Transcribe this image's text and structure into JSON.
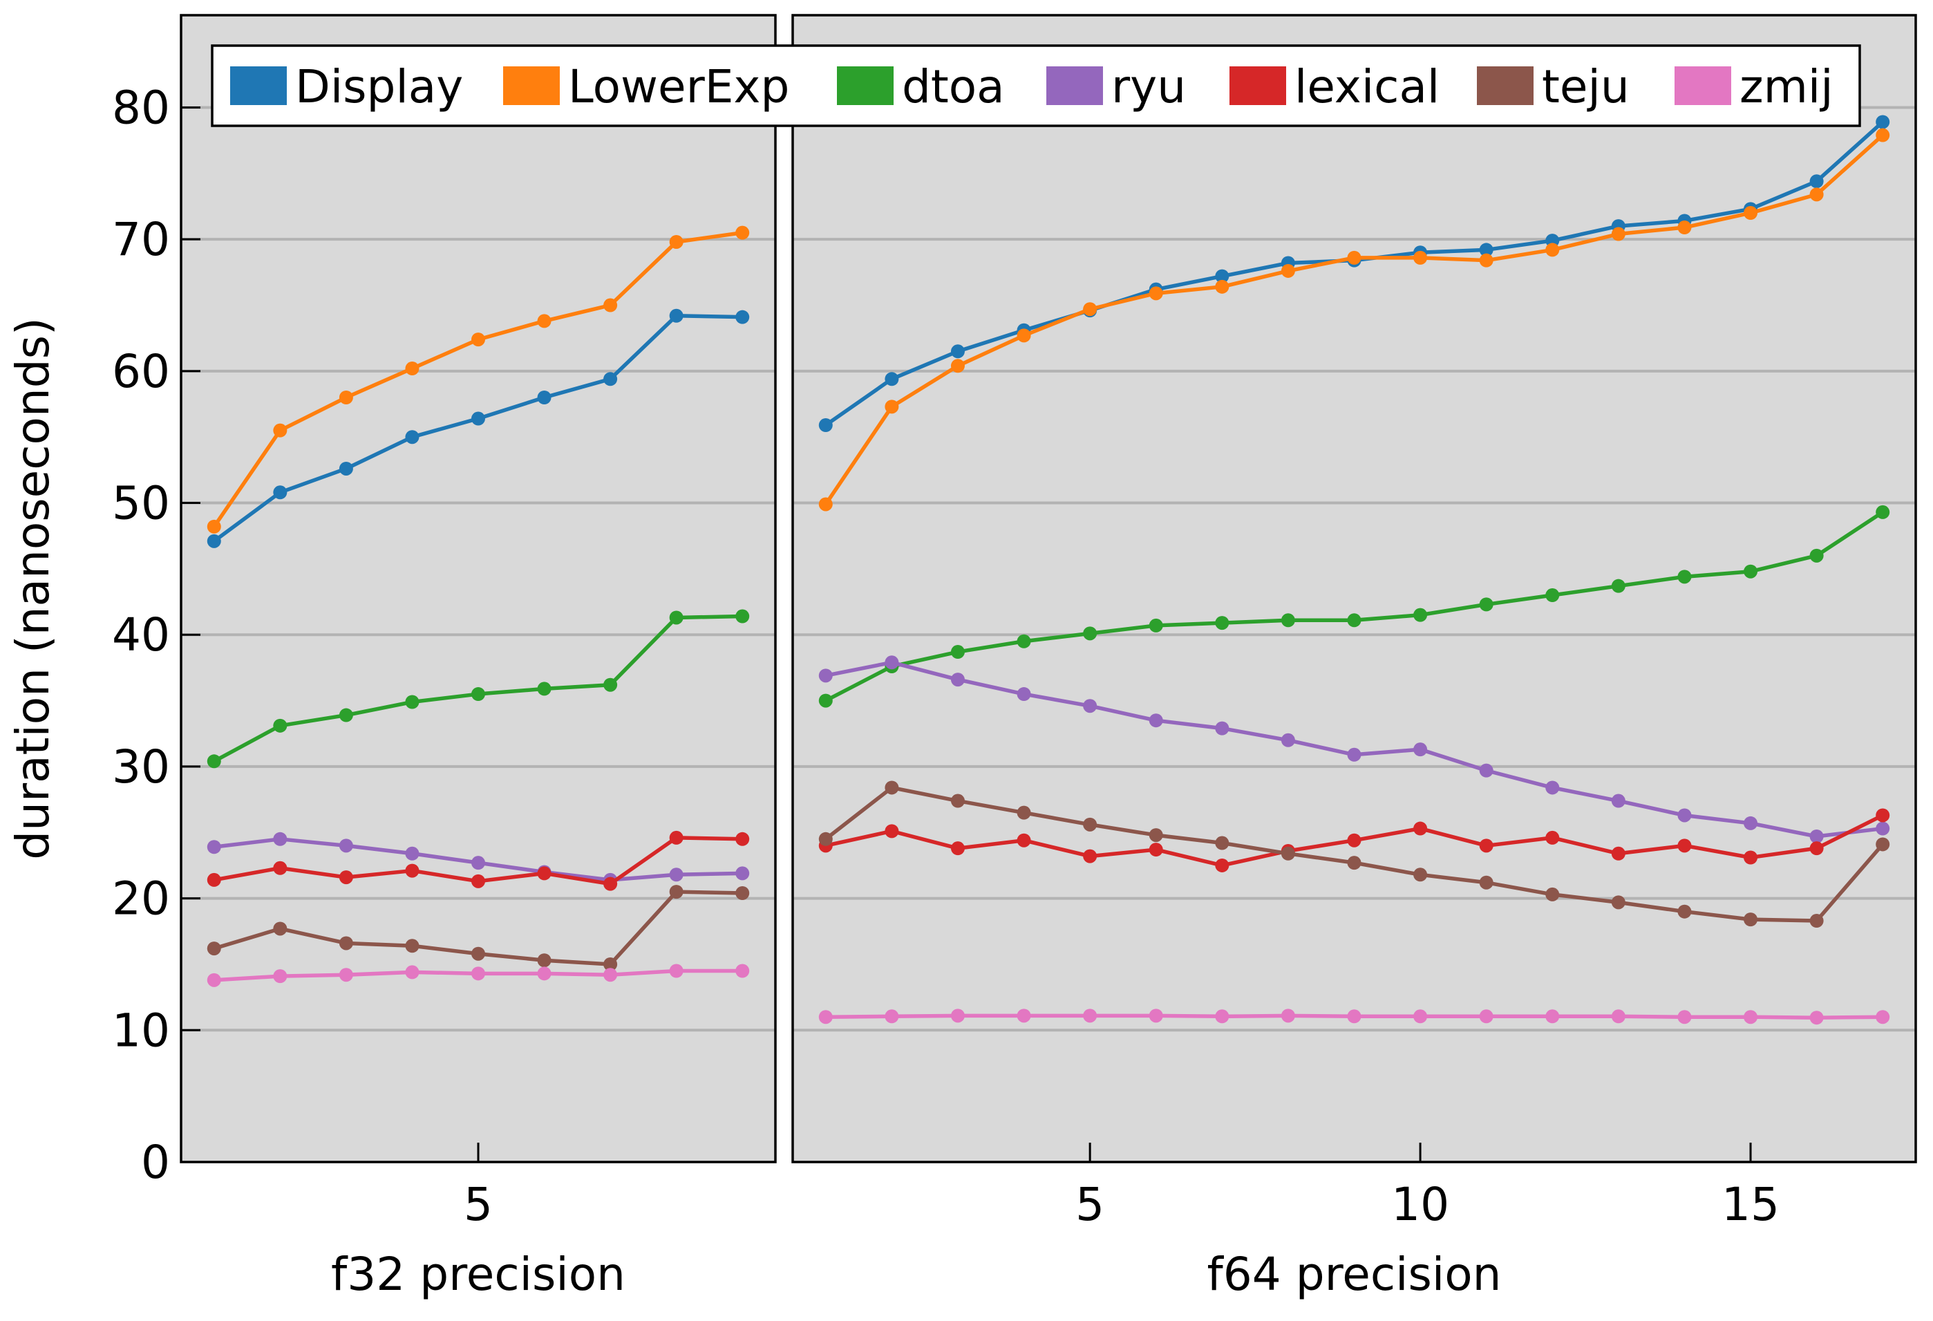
{
  "colors": {
    "Display": "#1f77b4",
    "LowerExp": "#ff7f0e",
    "dtoa": "#2ca02c",
    "ryu": "#9467bd",
    "lexical": "#d62728",
    "teju": "#8c564b",
    "zmij": "#e377c2",
    "panel_bg": "#d9d9d9",
    "grid": "#b3b3b3"
  },
  "legend": {
    "placement": "top",
    "entries": [
      "Display",
      "LowerExp",
      "dtoa",
      "ryu",
      "lexical",
      "teju",
      "zmij"
    ]
  },
  "chart_data": [
    {
      "type": "line",
      "xlabel": "f32 precision",
      "ylabel": "duration  (nanoseconds)",
      "ylim": [
        0,
        87
      ],
      "xlim": [
        0.5,
        9.5
      ],
      "yticks": [
        0,
        10,
        20,
        30,
        40,
        50,
        60,
        70,
        80
      ],
      "xticks": [
        5
      ],
      "grid": "y",
      "x": [
        1,
        2,
        3,
        4,
        5,
        6,
        7,
        8,
        9
      ],
      "series": [
        {
          "name": "Display",
          "values": [
            47.1,
            50.8,
            52.6,
            55.0,
            56.4,
            58.0,
            59.4,
            64.2,
            64.1
          ]
        },
        {
          "name": "LowerExp",
          "values": [
            48.2,
            55.5,
            58.0,
            60.2,
            62.4,
            63.8,
            65.0,
            69.8,
            70.5
          ]
        },
        {
          "name": "dtoa",
          "values": [
            30.4,
            33.1,
            33.9,
            34.9,
            35.5,
            35.9,
            36.2,
            41.3,
            41.4
          ]
        },
        {
          "name": "ryu",
          "values": [
            23.9,
            24.5,
            24.0,
            23.4,
            22.7,
            22.0,
            21.4,
            21.8,
            21.9
          ]
        },
        {
          "name": "lexical",
          "values": [
            21.4,
            22.3,
            21.6,
            22.1,
            21.3,
            21.9,
            21.1,
            24.6,
            24.5
          ]
        },
        {
          "name": "teju",
          "values": [
            16.2,
            17.7,
            16.6,
            16.4,
            15.8,
            15.3,
            15.0,
            20.5,
            20.4
          ]
        },
        {
          "name": "zmij",
          "values": [
            13.8,
            14.1,
            14.2,
            14.4,
            14.3,
            14.3,
            14.2,
            14.5,
            14.5
          ]
        }
      ]
    },
    {
      "type": "line",
      "xlabel": "f64 precision",
      "ylabel": "",
      "ylim": [
        0,
        87
      ],
      "xlim": [
        0.5,
        17.5
      ],
      "yticks": [
        0,
        10,
        20,
        30,
        40,
        50,
        60,
        70,
        80
      ],
      "xticks": [
        5,
        10,
        15
      ],
      "grid": "y",
      "x": [
        1,
        2,
        3,
        4,
        5,
        6,
        7,
        8,
        9,
        10,
        11,
        12,
        13,
        14,
        15,
        16,
        17
      ],
      "series": [
        {
          "name": "Display",
          "values": [
            55.9,
            59.4,
            61.5,
            63.1,
            64.6,
            66.2,
            67.2,
            68.2,
            68.4,
            69.0,
            69.2,
            69.9,
            71.0,
            71.4,
            72.3,
            74.4,
            78.9
          ]
        },
        {
          "name": "LowerExp",
          "values": [
            49.9,
            57.3,
            60.4,
            62.7,
            64.7,
            65.9,
            66.4,
            67.6,
            68.6,
            68.6,
            68.4,
            69.2,
            70.4,
            70.9,
            72.0,
            73.4,
            77.9
          ]
        },
        {
          "name": "dtoa",
          "values": [
            35.0,
            37.6,
            38.7,
            39.5,
            40.1,
            40.7,
            40.9,
            41.1,
            41.1,
            41.5,
            42.3,
            43.0,
            43.7,
            44.4,
            44.8,
            46.0,
            49.3
          ]
        },
        {
          "name": "ryu",
          "values": [
            36.9,
            37.9,
            36.6,
            35.5,
            34.6,
            33.5,
            32.9,
            32.0,
            30.9,
            31.3,
            29.7,
            28.4,
            27.4,
            26.3,
            25.7,
            24.7,
            25.3
          ]
        },
        {
          "name": "lexical",
          "values": [
            24.0,
            25.1,
            23.8,
            24.4,
            23.2,
            23.7,
            22.5,
            23.6,
            24.4,
            25.3,
            24.0,
            24.6,
            23.4,
            24.0,
            23.1,
            23.8,
            26.3
          ]
        },
        {
          "name": "teju",
          "values": [
            24.5,
            28.4,
            27.4,
            26.5,
            25.6,
            24.8,
            24.2,
            23.4,
            22.7,
            21.8,
            21.2,
            20.3,
            19.7,
            19.0,
            18.4,
            18.3,
            24.1
          ]
        },
        {
          "name": "zmij",
          "values": [
            11.0,
            11.05,
            11.1,
            11.1,
            11.1,
            11.1,
            11.05,
            11.1,
            11.05,
            11.05,
            11.05,
            11.05,
            11.05,
            11.0,
            11.0,
            10.95,
            11.0
          ]
        }
      ]
    }
  ]
}
